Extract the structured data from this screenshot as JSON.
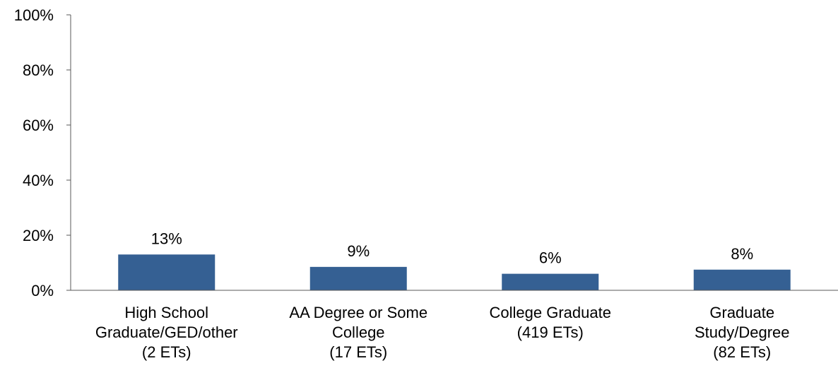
{
  "chart_data": {
    "type": "bar",
    "title": "",
    "xlabel": "",
    "ylabel": "",
    "ylim": [
      0,
      100
    ],
    "yticks": [
      0,
      20,
      40,
      60,
      80,
      100
    ],
    "ytick_labels": [
      "0%",
      "20%",
      "40%",
      "60%",
      "80%",
      "100%"
    ],
    "grid": false,
    "legend": "none",
    "bar_color": "#356093",
    "categories": [
      [
        "High School",
        "Graduate/GED/other",
        "(2 ETs)"
      ],
      [
        "AA Degree or Some",
        "College",
        "(17 ETs)"
      ],
      [
        "College Graduate",
        "(419 ETs)"
      ],
      [
        "Graduate",
        "Study/Degree",
        "(82 ETs)"
      ]
    ],
    "values": [
      13,
      8.5,
      6,
      7.5
    ],
    "data_labels": [
      "13%",
      "9%",
      "6%",
      "8%"
    ]
  }
}
